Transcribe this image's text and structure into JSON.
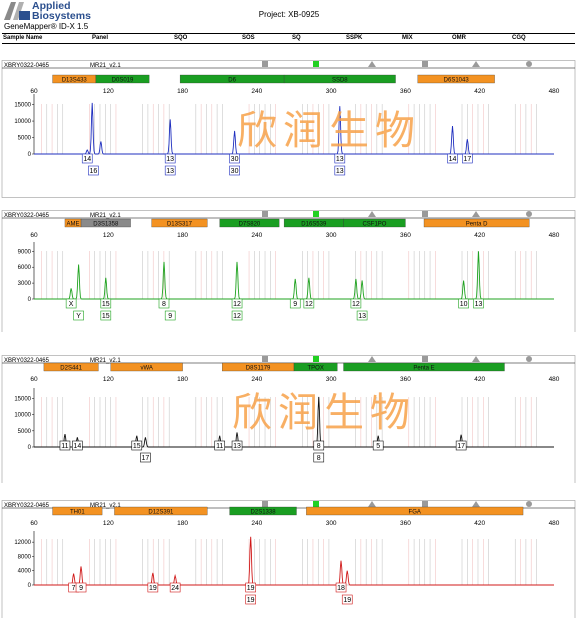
{
  "brand": {
    "line1": "Applied",
    "line2": "Biosystems",
    "product": "GeneMapper® ID-X  1.5"
  },
  "project": "Project: XB-0925",
  "header": [
    "Sample Name",
    "Panel",
    "SQO",
    "SOS",
    "SQ",
    "SSPK",
    "MIX",
    "OMR",
    "CGQ"
  ],
  "watermark": "欣润生物",
  "chart_data": [
    {
      "type": "electropherogram",
      "sample": "XBRY0322-0465",
      "panel": "MR21_v2.1",
      "dye_color": "#1f2fbf",
      "x_ticks": [
        60,
        120,
        180,
        240,
        300,
        360,
        420,
        480
      ],
      "xlim": [
        60,
        480
      ],
      "y_ticks": [
        15000,
        10000,
        5000,
        0
      ],
      "ylim": [
        0,
        17000
      ],
      "loci": [
        {
          "name": "D13S433",
          "start": 75,
          "end": 110,
          "color": "orange"
        },
        {
          "name": "D0S019",
          "start": 110,
          "end": 153,
          "color": "green"
        },
        {
          "name": "D6",
          "start": 178,
          "end": 262,
          "color": "green"
        },
        {
          "name": "SSD8",
          "start": 262,
          "end": 352,
          "color": "green"
        },
        {
          "name": "D6S1043",
          "start": 370,
          "end": 432,
          "color": "orange"
        }
      ],
      "peaks": [
        [
          103,
          1200
        ],
        [
          107,
          15500
        ],
        [
          114,
          3800
        ],
        [
          170,
          10500
        ],
        [
          222,
          7000
        ],
        [
          307,
          14500
        ],
        [
          398,
          8500
        ],
        [
          410,
          4500
        ]
      ],
      "labels": [
        {
          "x": 103,
          "row": 1,
          "text": "14"
        },
        {
          "x": 108,
          "row": 2,
          "text": "16"
        },
        {
          "x": 170,
          "row": 1,
          "text": "13"
        },
        {
          "x": 170,
          "row": 2,
          "text": "13"
        },
        {
          "x": 222,
          "row": 1,
          "text": "30"
        },
        {
          "x": 222,
          "row": 2,
          "text": "30"
        },
        {
          "x": 307,
          "row": 1,
          "text": "13"
        },
        {
          "x": 307,
          "row": 2,
          "text": "13"
        },
        {
          "x": 398,
          "row": 1,
          "text": "14"
        },
        {
          "x": 410,
          "row": 1,
          "text": "17"
        }
      ]
    },
    {
      "type": "electropherogram",
      "sample": "XBRY0322-0465",
      "panel": "MR21_v2.1",
      "dye_color": "#1fa31f",
      "x_ticks": [
        60,
        120,
        180,
        240,
        300,
        360,
        420,
        480
      ],
      "xlim": [
        60,
        480
      ],
      "y_ticks": [
        9000,
        6000,
        3000,
        0
      ],
      "ylim": [
        0,
        10000
      ],
      "loci": [
        {
          "name": "AME",
          "start": 85,
          "end": 98,
          "color": "orange"
        },
        {
          "name": "D3S1358",
          "start": 98,
          "end": 138,
          "color": "gray"
        },
        {
          "name": "D13S317",
          "start": 155,
          "end": 200,
          "color": "orange"
        },
        {
          "name": "D7S820",
          "start": 210,
          "end": 258,
          "color": "green"
        },
        {
          "name": "D16S539",
          "start": 262,
          "end": 310,
          "color": "green"
        },
        {
          "name": "CSF1PO",
          "start": 310,
          "end": 360,
          "color": "green"
        },
        {
          "name": "Penta D",
          "start": 375,
          "end": 460,
          "color": "orange"
        }
      ],
      "peaks": [
        [
          90,
          2000
        ],
        [
          96,
          6500
        ],
        [
          118,
          4000
        ],
        [
          165,
          7000
        ],
        [
          224,
          7000
        ],
        [
          271,
          3800
        ],
        [
          282,
          4000
        ],
        [
          320,
          3800
        ],
        [
          325,
          3500
        ],
        [
          407,
          3500
        ],
        [
          419,
          9000
        ]
      ],
      "labels": [
        {
          "x": 90,
          "row": 1,
          "text": "X"
        },
        {
          "x": 96,
          "row": 2,
          "text": "Y"
        },
        {
          "x": 118,
          "row": 1,
          "text": "15"
        },
        {
          "x": 118,
          "row": 2,
          "text": "15"
        },
        {
          "x": 165,
          "row": 1,
          "text": "8"
        },
        {
          "x": 170,
          "row": 2,
          "text": "9"
        },
        {
          "x": 224,
          "row": 1,
          "text": "12"
        },
        {
          "x": 224,
          "row": 2,
          "text": "12"
        },
        {
          "x": 271,
          "row": 1,
          "text": "9"
        },
        {
          "x": 282,
          "row": 1,
          "text": "12"
        },
        {
          "x": 320,
          "row": 1,
          "text": "12"
        },
        {
          "x": 325,
          "row": 2,
          "text": "13"
        },
        {
          "x": 407,
          "row": 1,
          "text": "10"
        },
        {
          "x": 419,
          "row": 1,
          "text": "13"
        }
      ]
    },
    {
      "type": "electropherogram",
      "sample": "XBRY0322-0465",
      "panel": "MR21_v2.1",
      "dye_color": "#111111",
      "x_ticks": [
        60,
        120,
        180,
        240,
        300,
        360,
        420,
        480
      ],
      "xlim": [
        60,
        480
      ],
      "y_ticks": [
        15000,
        10000,
        5000,
        0
      ],
      "ylim": [
        0,
        17000
      ],
      "loci": [
        {
          "name": "D2S441",
          "start": 68,
          "end": 112,
          "color": "orange"
        },
        {
          "name": "vWA",
          "start": 122,
          "end": 180,
          "color": "orange"
        },
        {
          "name": "D8S1179",
          "start": 212,
          "end": 270,
          "color": "orange"
        },
        {
          "name": "TPOX",
          "start": 270,
          "end": 305,
          "color": "green"
        },
        {
          "name": "Penta E",
          "start": 310,
          "end": 440,
          "color": "green"
        }
      ],
      "peaks": [
        [
          85,
          4000
        ],
        [
          95,
          3000
        ],
        [
          143,
          3500
        ],
        [
          150,
          3000
        ],
        [
          210,
          3500
        ],
        [
          224,
          4500
        ],
        [
          290,
          15500
        ],
        [
          338,
          3500
        ],
        [
          405,
          3800
        ]
      ],
      "labels": [
        {
          "x": 85,
          "row": 1,
          "text": "11"
        },
        {
          "x": 95,
          "row": 1,
          "text": "14"
        },
        {
          "x": 143,
          "row": 1,
          "text": "15"
        },
        {
          "x": 150,
          "row": 2,
          "text": "17"
        },
        {
          "x": 210,
          "row": 1,
          "text": "11"
        },
        {
          "x": 224,
          "row": 1,
          "text": "13"
        },
        {
          "x": 290,
          "row": 1,
          "text": "8"
        },
        {
          "x": 290,
          "row": 2,
          "text": "8"
        },
        {
          "x": 338,
          "row": 1,
          "text": "5"
        },
        {
          "x": 405,
          "row": 1,
          "text": "17"
        }
      ]
    },
    {
      "type": "electropherogram",
      "sample": "XBRY0322-0465",
      "panel": "MR21_v2.1",
      "dye_color": "#d01818",
      "x_ticks": [
        60,
        120,
        180,
        240,
        300,
        360,
        420,
        480
      ],
      "xlim": [
        60,
        480
      ],
      "y_ticks": [
        12000,
        8000,
        4000,
        0
      ],
      "ylim": [
        0,
        14000
      ],
      "loci": [
        {
          "name": "TH01",
          "start": 75,
          "end": 115,
          "color": "orange"
        },
        {
          "name": "D12S391",
          "start": 125,
          "end": 200,
          "color": "orange"
        },
        {
          "name": "D2S1338",
          "start": 218,
          "end": 272,
          "color": "green"
        },
        {
          "name": "FGA",
          "start": 280,
          "end": 455,
          "color": "orange"
        }
      ],
      "peaks": [
        [
          92,
          3200
        ],
        [
          98,
          5200
        ],
        [
          156,
          3400
        ],
        [
          174,
          2600
        ],
        [
          235,
          13500
        ],
        [
          308,
          6800
        ],
        [
          313,
          4000
        ]
      ],
      "labels": [
        {
          "x": 92,
          "row": 1,
          "text": "7"
        },
        {
          "x": 98,
          "row": 1,
          "text": "9"
        },
        {
          "x": 156,
          "row": 1,
          "text": "19"
        },
        {
          "x": 174,
          "row": 1,
          "text": "24"
        },
        {
          "x": 235,
          "row": 1,
          "text": "19"
        },
        {
          "x": 235,
          "row": 2,
          "text": "19"
        },
        {
          "x": 308,
          "row": 1,
          "text": "18"
        },
        {
          "x": 313,
          "row": 2,
          "text": "19"
        }
      ]
    }
  ]
}
